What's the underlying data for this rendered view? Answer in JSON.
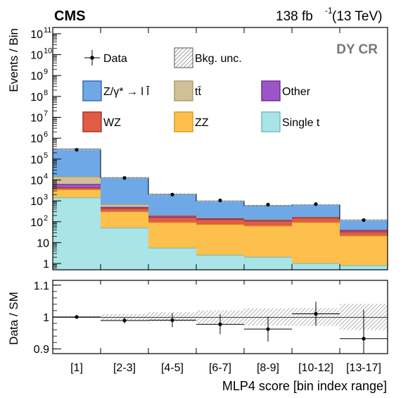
{
  "header": {
    "experiment": "CMS",
    "lumi_value": "138 fb",
    "lumi_exp": "-1",
    "energy": "(13 TeV)",
    "region": "DY CR"
  },
  "chart_data": [
    {
      "type": "bar",
      "stacked": true,
      "log_y": true,
      "ylabel": "Events / Bin",
      "ylim": [
        0.5,
        200000000000
      ],
      "y_ticks": [
        {
          "value": 1,
          "label": "1"
        },
        {
          "value": 10,
          "label": "10"
        },
        {
          "value": 100,
          "label": "10",
          "exp": "2"
        },
        {
          "value": 1000,
          "label": "10",
          "exp": "3"
        },
        {
          "value": 10000,
          "label": "10",
          "exp": "4"
        },
        {
          "value": 100000,
          "label": "10",
          "exp": "5"
        },
        {
          "value": 1000000,
          "label": "10",
          "exp": "6"
        },
        {
          "value": 10000000,
          "label": "10",
          "exp": "7"
        },
        {
          "value": 100000000,
          "label": "10",
          "exp": "8"
        },
        {
          "value": 1000000000,
          "label": "10",
          "exp": "9"
        },
        {
          "value": 10000000000,
          "label": "10",
          "exp": "10"
        },
        {
          "value": 100000000000,
          "label": "10",
          "exp": "11"
        }
      ],
      "categories": [
        "[1]",
        "[2-3]",
        "[4-5]",
        "[6-7]",
        "[8-9]",
        "[10-12]",
        "[13-17]"
      ],
      "series": [
        {
          "name": "Single t",
          "color": "#a9e4e7",
          "values": [
            1400,
            50,
            5.5,
            2.5,
            2.0,
            1.0,
            0.8
          ]
        },
        {
          "name": "ZZ",
          "color": "#fec04c",
          "values": [
            2000,
            250,
            85,
            70,
            60,
            90,
            20
          ]
        },
        {
          "name": "WZ",
          "color": "#e05c44",
          "values": [
            800,
            130,
            70,
            55,
            45,
            60,
            12
          ]
        },
        {
          "name": "Other",
          "color": "#9a55c8",
          "values": [
            2000,
            60,
            25,
            15,
            12,
            13,
            6
          ]
        },
        {
          "name": "tt̄",
          "color": "#cfc096",
          "values": [
            8000,
            180,
            20,
            8,
            6,
            6,
            3
          ]
        },
        {
          "name": "Z/γ* → l l̄",
          "color": "#6ea8e6",
          "values": [
            280000,
            12000,
            1900,
            830,
            470,
            490,
            80
          ]
        }
      ],
      "data_points": {
        "name": "Data",
        "values": [
          280000,
          12500,
          2000,
          1050,
          660,
          700,
          120
        ],
        "errors": [
          530,
          112,
          45,
          32,
          26,
          26,
          11
        ]
      },
      "legend": [
        {
          "label": "Data",
          "kind": "marker"
        },
        {
          "label": "Bkg. unc.",
          "kind": "hatch"
        },
        {
          "label": "Z/γ* → l l̄",
          "kind": "fill",
          "color": "#6ea8e6",
          "edge": "#2e64b8"
        },
        {
          "label": "tt̄",
          "kind": "fill",
          "color": "#cfc096",
          "edge": "#a9976a"
        },
        {
          "label": "Other",
          "kind": "fill",
          "color": "#9a55c8",
          "edge": "#6a2c96"
        },
        {
          "label": "WZ",
          "kind": "fill",
          "color": "#e05c44",
          "edge": "#a5311e"
        },
        {
          "label": "ZZ",
          "kind": "fill",
          "color": "#fec04c",
          "edge": "#d69a1c"
        },
        {
          "label": "Single t",
          "kind": "fill",
          "color": "#a9e4e7",
          "edge": "#72b8bd"
        }
      ],
      "legend_placement": "top"
    },
    {
      "type": "scatter",
      "ylabel": "Data / SM",
      "xlabel": "MLP4 score [bin index range]",
      "ylim": [
        0.885,
        1.115
      ],
      "y_ticks": [
        {
          "value": 0.9,
          "label": "0.9"
        },
        {
          "value": 1.0,
          "label": "1"
        },
        {
          "value": 1.1,
          "label": "1.1"
        }
      ],
      "reference_line": 1,
      "categories": [
        "[1]",
        "[2-3]",
        "[4-5]",
        "[6-7]",
        "[8-9]",
        "[10-12]",
        "[13-17]"
      ],
      "ratio": [
        1.0,
        0.989,
        0.99,
        0.977,
        0.962,
        1.01,
        0.932
      ],
      "ratio_errors": [
        0.0019,
        0.009,
        0.022,
        0.031,
        0.039,
        0.038,
        0.09
      ],
      "unc_band": [
        0.003,
        0.01,
        0.015,
        0.021,
        0.027,
        0.028,
        0.041
      ]
    }
  ]
}
